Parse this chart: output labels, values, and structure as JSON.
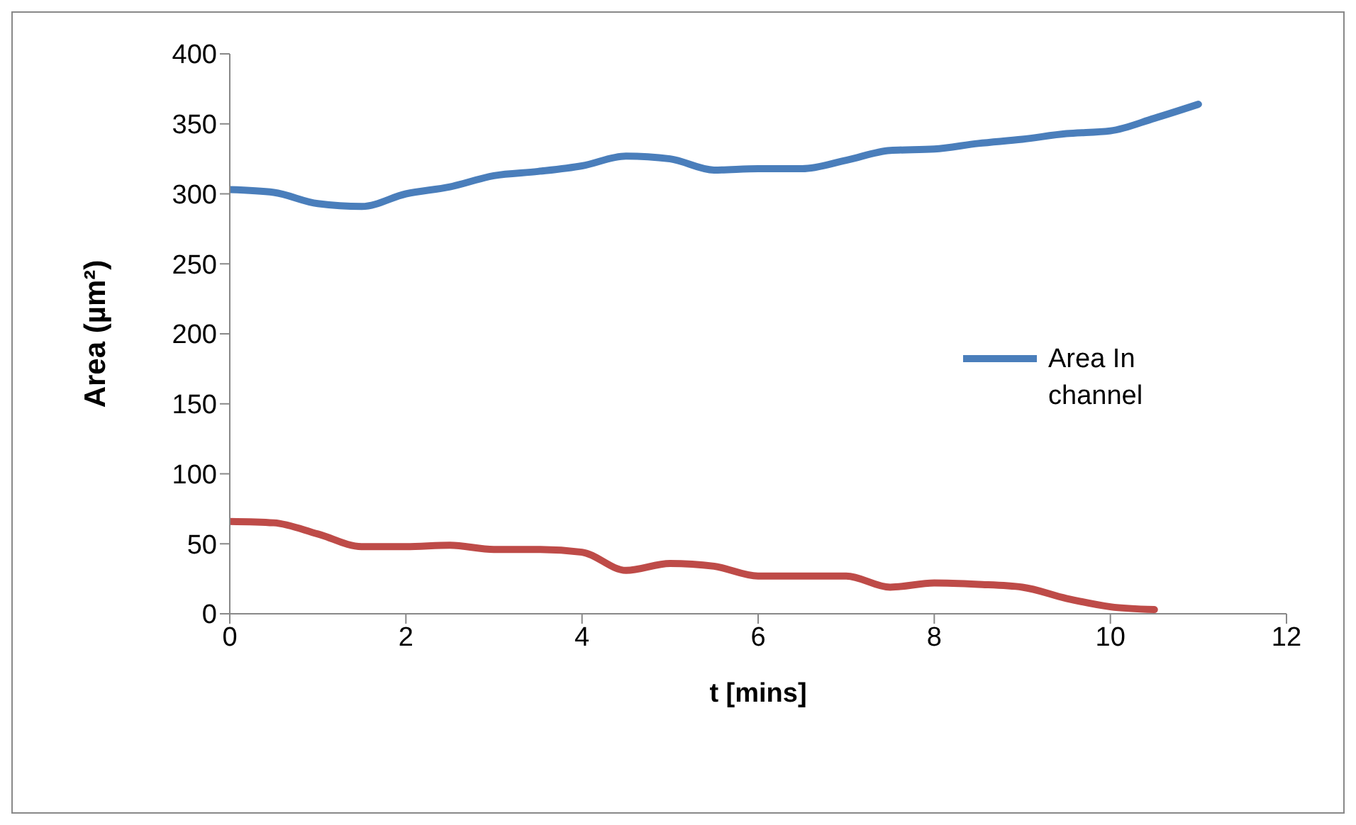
{
  "chart_data": {
    "type": "line",
    "xlabel": "t [mins]",
    "ylabel": "Area (µm²)",
    "xlim": [
      0,
      12
    ],
    "xticks": [
      0,
      2,
      4,
      6,
      8,
      10,
      12
    ],
    "ylim": [
      0,
      400
    ],
    "yticks": [
      0,
      50,
      100,
      150,
      200,
      250,
      300,
      350,
      400
    ],
    "grid": false,
    "legend": "right",
    "marker": "none",
    "line_style": "solid",
    "series": [
      {
        "name": "Area In channel",
        "color": "#4a7ebb",
        "x": [
          0,
          0.5,
          1,
          1.5,
          2,
          2.5,
          3,
          3.5,
          4,
          4.5,
          5,
          5.5,
          6,
          6.5,
          7,
          7.5,
          8,
          8.5,
          9,
          9.5,
          10,
          10.5,
          11
        ],
        "values": [
          303,
          301,
          293,
          291,
          300,
          305,
          313,
          316,
          320,
          327,
          325,
          317,
          318,
          318,
          324,
          331,
          332,
          336,
          339,
          343,
          345,
          354,
          364
        ]
      },
      {
        "color": "#be4b48",
        "x": [
          0,
          0.5,
          1,
          1.5,
          2,
          2.5,
          3,
          3.5,
          4,
          4.5,
          5,
          5.5,
          6,
          6.5,
          7,
          7.5,
          8,
          8.5,
          9,
          9.5,
          10,
          10.5
        ],
        "values": [
          66,
          65,
          57,
          48,
          48,
          49,
          46,
          46,
          44,
          31,
          36,
          34,
          27,
          27,
          27,
          19,
          22,
          21,
          19,
          11,
          5,
          3
        ]
      }
    ]
  }
}
